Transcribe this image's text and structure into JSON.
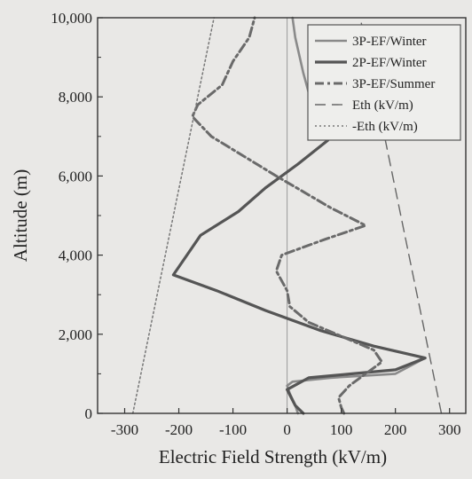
{
  "chart_data": {
    "type": "line",
    "xlabel": "Electric Field Strength (kV/m)",
    "ylabel": "Altitude (m)",
    "xlim": [
      -350,
      330
    ],
    "ylim": [
      0,
      10000
    ],
    "x_ticks": [
      -300,
      -200,
      -100,
      0,
      100,
      200,
      300
    ],
    "x_tick_labels": [
      "-300",
      "-200",
      "-100",
      "0",
      "100",
      "200",
      "300"
    ],
    "y_ticks": [
      0,
      2000,
      4000,
      6000,
      8000,
      10000
    ],
    "y_tick_labels": [
      "0",
      "2,000",
      "4,000",
      "6,000",
      "8,000",
      "10,000"
    ],
    "grid": false,
    "zero_line": true,
    "legend_position": "top-right",
    "series": [
      {
        "name": "3P-EF/Winter",
        "style": "solid-light",
        "points": [
          [
            20,
            0
          ],
          [
            15,
            200
          ],
          [
            5,
            500
          ],
          [
            0,
            700
          ],
          [
            10,
            800
          ],
          [
            80,
            900
          ],
          [
            200,
            1000
          ],
          [
            255,
            1400
          ],
          [
            160,
            1700
          ],
          [
            60,
            2100
          ],
          [
            -40,
            2600
          ],
          [
            -130,
            3100
          ],
          [
            -210,
            3500
          ],
          [
            -200,
            3700
          ],
          [
            -180,
            4100
          ],
          [
            -160,
            4500
          ],
          [
            -90,
            5100
          ],
          [
            -40,
            5700
          ],
          [
            20,
            6300
          ],
          [
            75,
            6900
          ],
          [
            50,
            7600
          ],
          [
            30,
            8600
          ],
          [
            15,
            9500
          ],
          [
            10,
            10000
          ]
        ]
      },
      {
        "name": "2P-EF/Winter",
        "style": "solid-bold",
        "points": [
          [
            30,
            0
          ],
          [
            15,
            200
          ],
          [
            0,
            600
          ],
          [
            40,
            900
          ],
          [
            120,
            1000
          ],
          [
            200,
            1100
          ],
          [
            255,
            1400
          ],
          [
            160,
            1700
          ],
          [
            60,
            2100
          ],
          [
            -40,
            2600
          ],
          [
            -130,
            3100
          ],
          [
            -210,
            3500
          ],
          [
            -200,
            3700
          ],
          [
            -180,
            4100
          ],
          [
            -160,
            4500
          ],
          [
            -90,
            5100
          ],
          [
            -40,
            5700
          ],
          [
            20,
            6300
          ],
          [
            75,
            6900
          ]
        ]
      },
      {
        "name": "3P-EF/Summer",
        "style": "dash-dot",
        "points": [
          [
            105,
            0
          ],
          [
            100,
            150
          ],
          [
            95,
            400
          ],
          [
            115,
            700
          ],
          [
            175,
            1300
          ],
          [
            160,
            1600
          ],
          [
            40,
            2300
          ],
          [
            5,
            2700
          ],
          [
            0,
            3100
          ],
          [
            -20,
            3600
          ],
          [
            -10,
            4000
          ],
          [
            70,
            4400
          ],
          [
            145,
            4750
          ],
          [
            80,
            5200
          ],
          [
            30,
            5600
          ],
          [
            -20,
            6000
          ],
          [
            -80,
            6500
          ],
          [
            -140,
            7000
          ],
          [
            -175,
            7500
          ],
          [
            -165,
            7800
          ],
          [
            -120,
            8300
          ],
          [
            -100,
            8900
          ],
          [
            -70,
            9500
          ],
          [
            -60,
            10000
          ]
        ]
      },
      {
        "name": "Eth (kV/m)",
        "style": "long-dash",
        "points": [
          [
            285,
            0
          ],
          [
            135,
            10000
          ]
        ]
      },
      {
        "name": "-Eth (kV/m)",
        "style": "dotted",
        "points": [
          [
            -285,
            0
          ],
          [
            -135,
            10000
          ]
        ]
      }
    ]
  }
}
